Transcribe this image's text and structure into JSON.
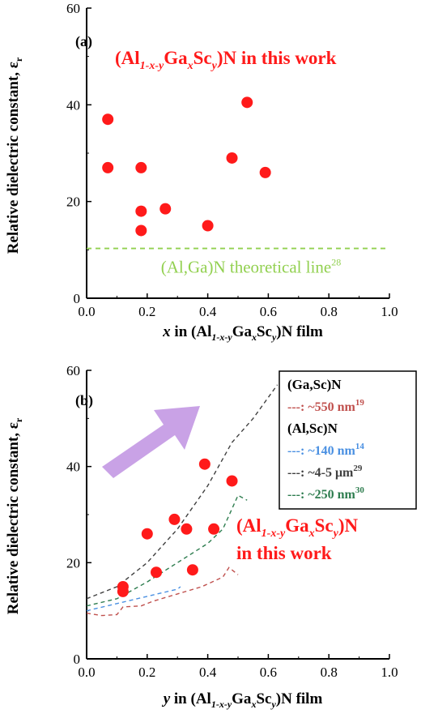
{
  "chart_data": [
    {
      "type": "scatter",
      "panel_label": "(a)",
      "xlabel": {
        "italic_var": "x",
        "rest": " in (Al",
        "sub1": "1-x-y",
        "mid": "Ga",
        "sub2": "x",
        "mid2": "Sc",
        "sub3": "y",
        "end": ")N film"
      },
      "ylabel": "Relative dielectric constant, ε",
      "ylabel_sub": "r",
      "xlim": [
        0.0,
        1.0
      ],
      "ylim": [
        0,
        60
      ],
      "x_ticks": [
        "0.0",
        "0.2",
        "0.4",
        "0.6",
        "0.8",
        "1.0"
      ],
      "y_ticks": [
        "0",
        "20",
        "40",
        "60"
      ],
      "series": [
        {
          "name": "(Al1-x-yGaxScy)N in this work",
          "color": "#ff1a1a",
          "points": [
            {
              "x": 0.07,
              "y": 37.0
            },
            {
              "x": 0.07,
              "y": 27.0
            },
            {
              "x": 0.18,
              "y": 27.0
            },
            {
              "x": 0.18,
              "y": 18.0
            },
            {
              "x": 0.18,
              "y": 14.0
            },
            {
              "x": 0.26,
              "y": 18.5
            },
            {
              "x": 0.4,
              "y": 15.0
            },
            {
              "x": 0.48,
              "y": 29.0
            },
            {
              "x": 0.53,
              "y": 40.5
            },
            {
              "x": 0.59,
              "y": 26.0
            }
          ]
        }
      ],
      "reference_line": {
        "name": "(Al,Ga)N theoretical line",
        "ref": "28",
        "color": "#92d050",
        "y": 10.3,
        "x_range": [
          0.0,
          1.0
        ]
      },
      "annotation": {
        "pre": "(Al",
        "sub1": "1-x-y",
        "mid": "Ga",
        "sub2": "x",
        "mid2": "Sc",
        "sub3": "y",
        "end": ")N in this work"
      }
    },
    {
      "type": "scatter",
      "panel_label": "(b)",
      "xlabel": {
        "italic_var": "y",
        "rest": " in (Al",
        "sub1": "1-x-y",
        "mid": "Ga",
        "sub2": "x",
        "mid2": "Sc",
        "sub3": "y",
        "end": ")N film"
      },
      "ylabel": "Relative dielectric constant, ε",
      "ylabel_sub": "r",
      "xlim": [
        0.0,
        1.0
      ],
      "ylim": [
        0,
        60
      ],
      "x_ticks": [
        "0.0",
        "0.2",
        "0.4",
        "0.6",
        "0.8",
        "1.0"
      ],
      "y_ticks": [
        "0",
        "20",
        "40",
        "60"
      ],
      "series": [
        {
          "name": "(Al1-x-yGaxScy)N in this work",
          "color": "#ff1a1a",
          "points": [
            {
              "x": 0.12,
              "y": 15.0
            },
            {
              "x": 0.12,
              "y": 14.0
            },
            {
              "x": 0.2,
              "y": 26.0
            },
            {
              "x": 0.23,
              "y": 18.0
            },
            {
              "x": 0.29,
              "y": 29.0
            },
            {
              "x": 0.33,
              "y": 27.0
            },
            {
              "x": 0.35,
              "y": 18.5
            },
            {
              "x": 0.39,
              "y": 40.5
            },
            {
              "x": 0.42,
              "y": 27.0
            },
            {
              "x": 0.48,
              "y": 37.0
            }
          ]
        },
        {
          "name": "(Ga,Sc)N ~550 nm",
          "color": "#c0504d",
          "points": [
            {
              "x": 0.0,
              "y": 9.5
            },
            {
              "x": 0.05,
              "y": 9.0
            },
            {
              "x": 0.1,
              "y": 9.2
            },
            {
              "x": 0.12,
              "y": 10.8
            },
            {
              "x": 0.18,
              "y": 11.0
            },
            {
              "x": 0.22,
              "y": 12.0
            },
            {
              "x": 0.3,
              "y": 13.5
            },
            {
              "x": 0.38,
              "y": 15.0
            },
            {
              "x": 0.45,
              "y": 17.0
            },
            {
              "x": 0.47,
              "y": 19.0
            },
            {
              "x": 0.5,
              "y": 17.5
            }
          ]
        },
        {
          "name": "(Al,Sc)N ~140 nm",
          "color": "#4a90e2",
          "points": [
            {
              "x": 0.0,
              "y": 10.0
            },
            {
              "x": 0.1,
              "y": 11.5
            },
            {
              "x": 0.2,
              "y": 13.0
            },
            {
              "x": 0.3,
              "y": 14.5
            },
            {
              "x": 0.31,
              "y": 15.0
            }
          ]
        },
        {
          "name": "(Al,Sc)N ~4-5 μm",
          "color": "#404040",
          "points": [
            {
              "x": 0.0,
              "y": 12.5
            },
            {
              "x": 0.1,
              "y": 15.0
            },
            {
              "x": 0.2,
              "y": 20.0
            },
            {
              "x": 0.3,
              "y": 27.0
            },
            {
              "x": 0.4,
              "y": 36.0
            },
            {
              "x": 0.48,
              "y": 45.0
            },
            {
              "x": 0.55,
              "y": 50.0
            },
            {
              "x": 0.63,
              "y": 57.0
            }
          ]
        },
        {
          "name": "(Al,Sc)N ~250 nm",
          "color": "#2e7d4f",
          "points": [
            {
              "x": 0.0,
              "y": 11.0
            },
            {
              "x": 0.1,
              "y": 12.5
            },
            {
              "x": 0.2,
              "y": 16.0
            },
            {
              "x": 0.3,
              "y": 20.0
            },
            {
              "x": 0.4,
              "y": 24.0
            },
            {
              "x": 0.45,
              "y": 27.0
            },
            {
              "x": 0.5,
              "y": 34.0
            },
            {
              "x": 0.53,
              "y": 33.0
            }
          ]
        }
      ],
      "legend": {
        "placement": "top-right",
        "entries": [
          {
            "kind": "header",
            "text": "(Ga,Sc)N"
          },
          {
            "kind": "item",
            "prefix": "---: ",
            "text": "~550 nm",
            "ref": "19",
            "color": "#c0504d"
          },
          {
            "kind": "header",
            "text": "(Al,Sc)N"
          },
          {
            "kind": "item",
            "prefix": "---: ",
            "text": "~140 nm",
            "ref": "14",
            "color": "#4a90e2"
          },
          {
            "kind": "item",
            "prefix": "---: ",
            "text": "~4-5 μm",
            "ref": "29",
            "color": "#404040"
          },
          {
            "kind": "item",
            "prefix": "---: ",
            "text": "~250 nm",
            "ref": "30",
            "color": "#2e7d4f"
          }
        ]
      },
      "arrow_color": "#c9a2e6",
      "annotation": {
        "line1_pre": "(Al",
        "sub1": "1-x-y",
        "mid": "Ga",
        "sub2": "x",
        "mid2": "Sc",
        "sub3": "y",
        "line1_end": ")N",
        "line2": "in this work"
      }
    }
  ]
}
